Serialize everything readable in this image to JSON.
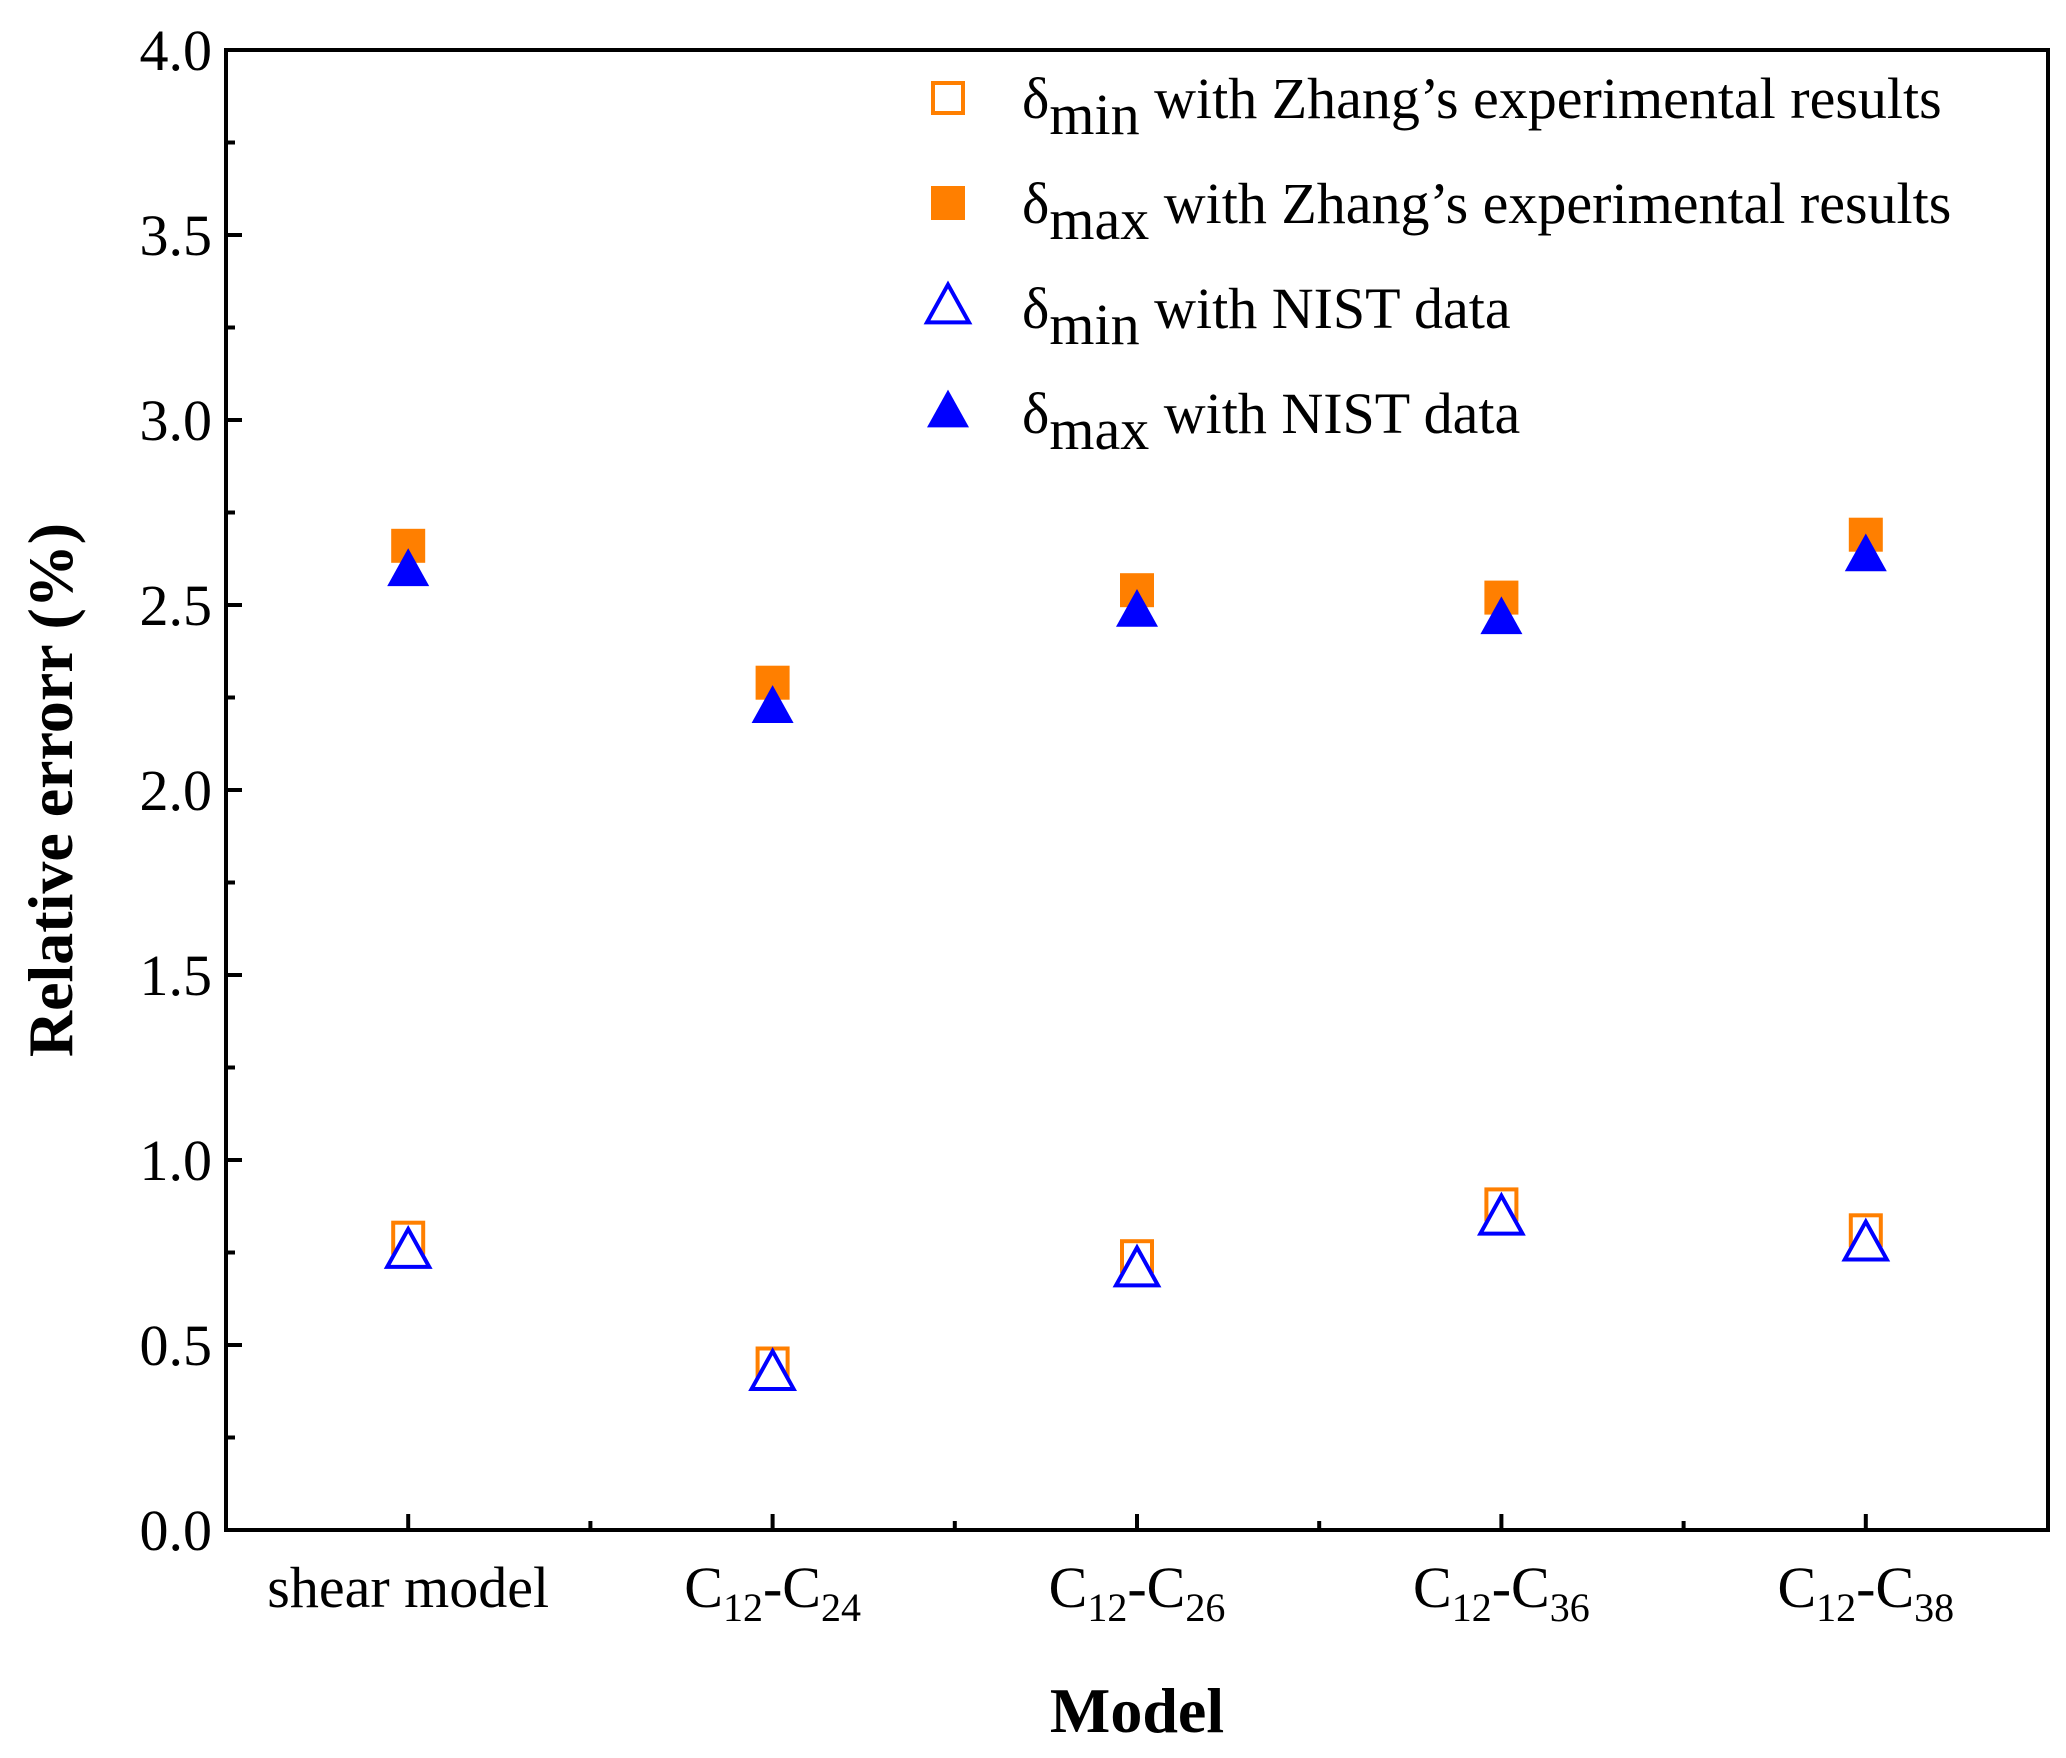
{
  "chart_data": {
    "type": "scatter",
    "title": "",
    "xlabel": "Model",
    "ylabel": "Relative errorr (%)",
    "ylim": [
      0,
      4.0
    ],
    "yticks": [
      "0.0",
      "0.5",
      "1.0",
      "1.5",
      "2.0",
      "2.5",
      "3.0",
      "3.5",
      "4.0"
    ],
    "grid": false,
    "legend_position": "top-right",
    "categories": [
      {
        "base": "shear model",
        "parts": []
      },
      {
        "base": "C",
        "parts": [
          {
            "sub": "12"
          },
          {
            "text": "-C"
          },
          {
            "sub": "24"
          }
        ]
      },
      {
        "base": "C",
        "parts": [
          {
            "sub": "12"
          },
          {
            "text": "-C"
          },
          {
            "sub": "26"
          }
        ]
      },
      {
        "base": "C",
        "parts": [
          {
            "sub": "12"
          },
          {
            "text": "-C"
          },
          {
            "sub": "36"
          }
        ]
      },
      {
        "base": "C",
        "parts": [
          {
            "sub": "12"
          },
          {
            "text": "-C"
          },
          {
            "sub": "38"
          }
        ]
      }
    ],
    "series": [
      {
        "name": "δmin with Zhang’s experimental results",
        "symbol": "δ",
        "sub": "min",
        "rest": " with Zhang’s experimental results",
        "marker": "square-open",
        "color": "#ff7f00",
        "values": [
          0.79,
          0.45,
          0.74,
          0.88,
          0.81
        ]
      },
      {
        "name": "δmax with Zhang’s experimental results",
        "symbol": "δ",
        "sub": "max",
        "rest": " with Zhang’s experimental results",
        "marker": "square-filled",
        "color": "#ff7f00",
        "values": [
          2.66,
          2.29,
          2.54,
          2.52,
          2.69
        ]
      },
      {
        "name": "δmin with NIST data",
        "symbol": "δ",
        "sub": "min",
        "rest": " with NIST data",
        "marker": "triangle-open",
        "color": "#0000ff",
        "values": [
          0.75,
          0.42,
          0.7,
          0.84,
          0.77
        ]
      },
      {
        "name": "δmax with NIST data",
        "symbol": "δ",
        "sub": "max",
        "rest": " with NIST data",
        "marker": "triangle-filled",
        "color": "#0000ff",
        "values": [
          2.59,
          2.22,
          2.48,
          2.46,
          2.63
        ]
      }
    ]
  }
}
